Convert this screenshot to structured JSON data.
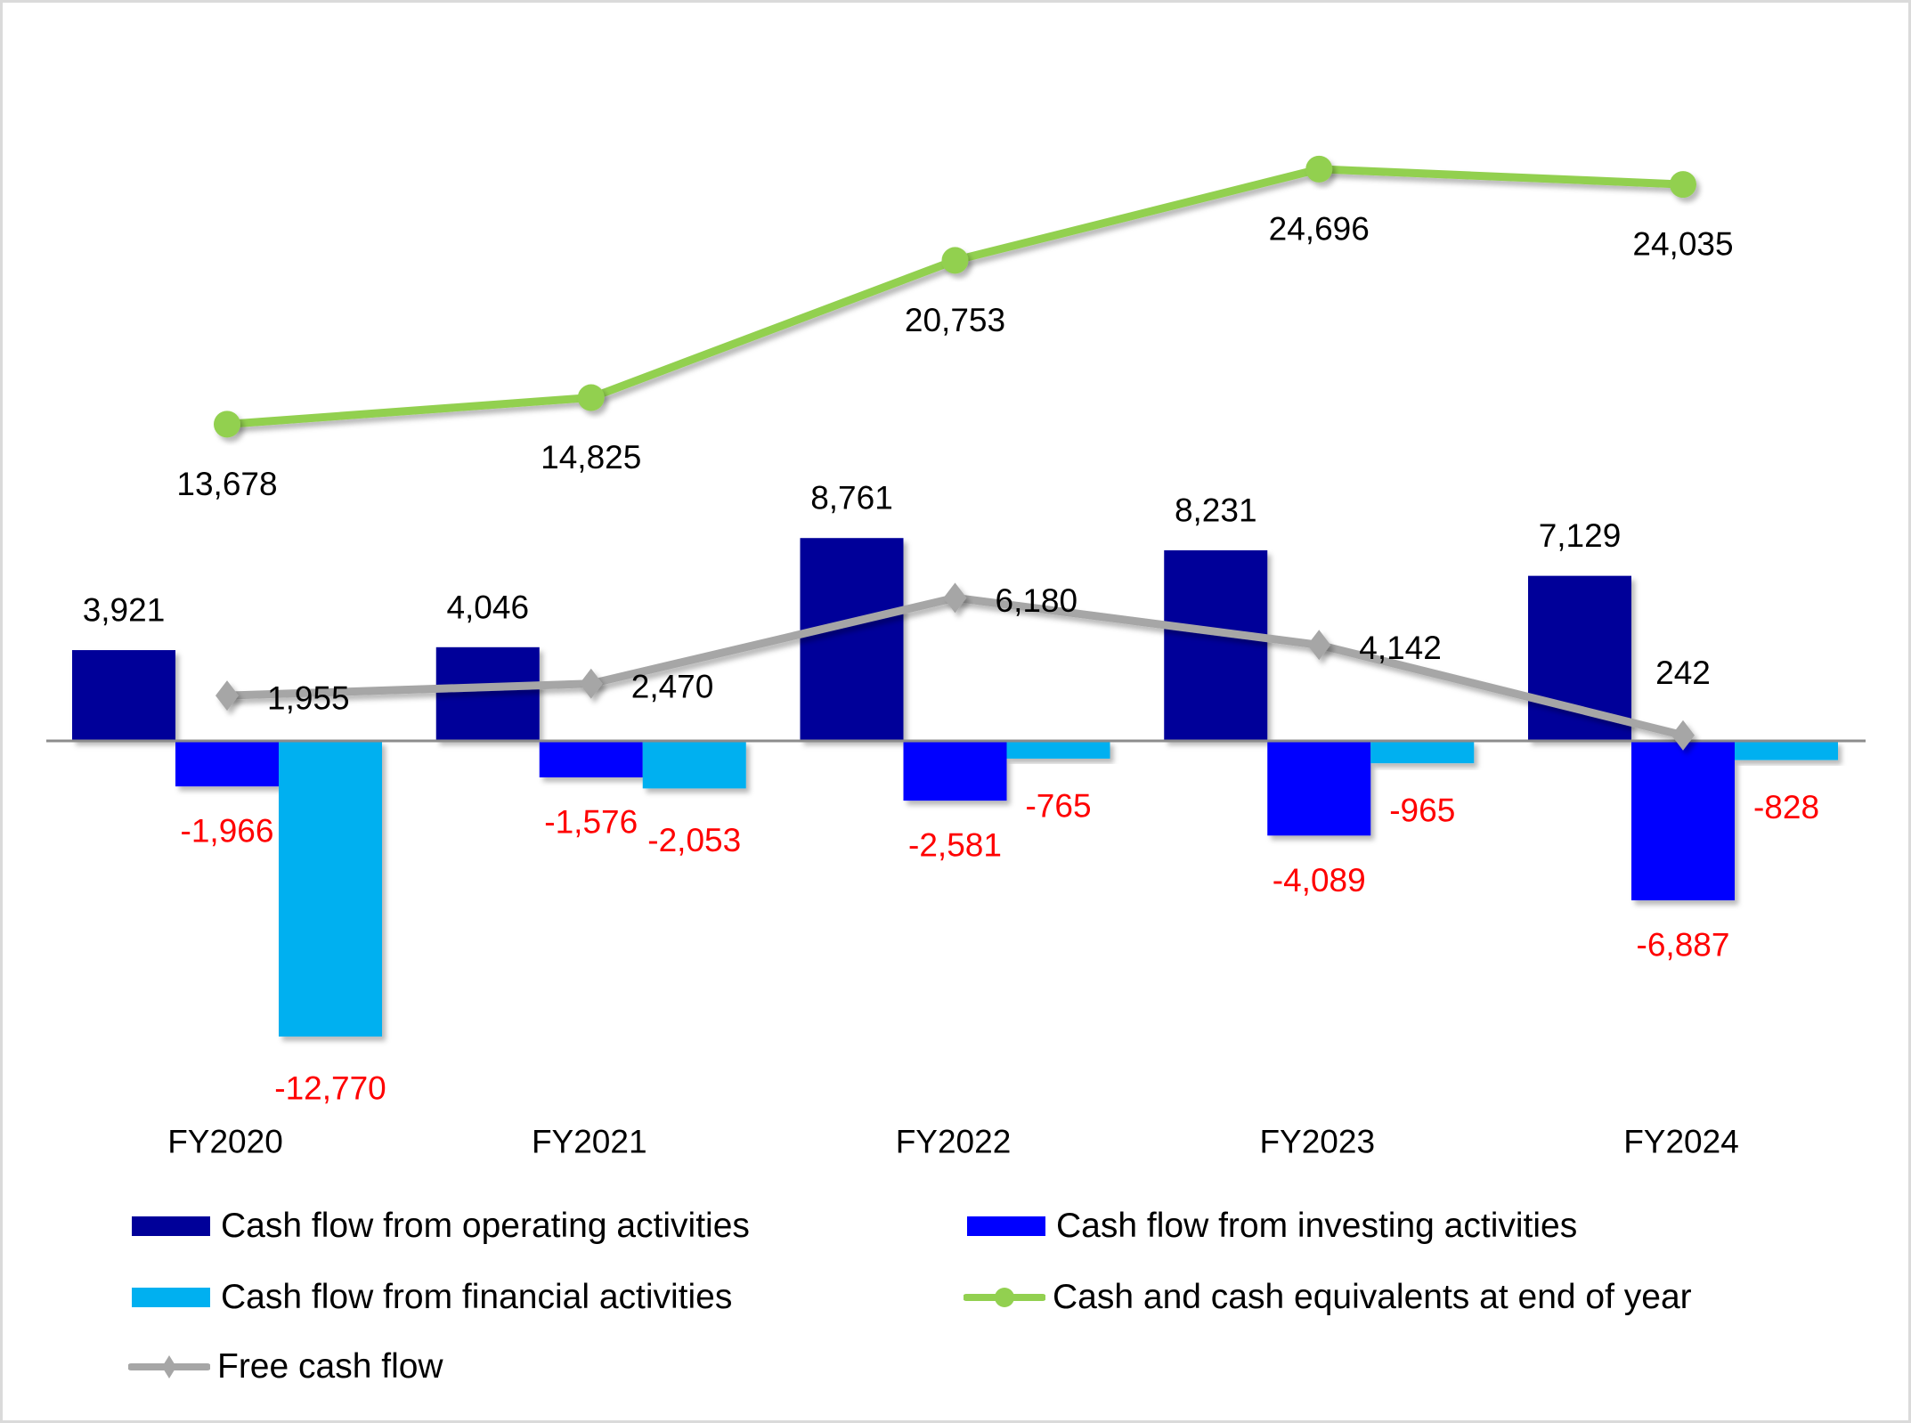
{
  "chart_data": {
    "type": "bar",
    "title": "",
    "xlabel": "",
    "ylabel": "",
    "categories": [
      "FY2020",
      "FY2021",
      "FY2022",
      "FY2023",
      "FY2024"
    ],
    "ylim": [
      -12770,
      24696
    ],
    "grid": false,
    "legend_position": "bottom",
    "series": [
      {
        "name": "Cash flow from operating activities",
        "kind": "bar",
        "color": "#000099",
        "values": [
          3921,
          4046,
          8761,
          8231,
          7129
        ],
        "labels": [
          "3,921",
          "4,046",
          "8,761",
          "8,231",
          "7,129"
        ]
      },
      {
        "name": "Cash flow from investing activities",
        "kind": "bar",
        "color": "#0000ff",
        "values": [
          -1966,
          -1576,
          -2581,
          -4089,
          -6887
        ],
        "labels": [
          "-1,966",
          "-1,576",
          "-2,581",
          "-4,089",
          "-6,887"
        ]
      },
      {
        "name": "Cash flow from financial activities",
        "kind": "bar",
        "color": "#00b0f0",
        "values": [
          -12770,
          -2053,
          -765,
          -965,
          -828
        ],
        "labels": [
          "-12,770",
          "-2,053",
          "-765",
          "-965",
          "-828"
        ]
      },
      {
        "name": "Cash and cash equivalents at end of year",
        "kind": "line",
        "marker": "circle",
        "color": "#92d050",
        "values": [
          13678,
          14825,
          20753,
          24696,
          24035
        ],
        "labels": [
          "13,678",
          "14,825",
          "20,753",
          "24,696",
          "24,035"
        ]
      },
      {
        "name": "Free cash flow",
        "kind": "line",
        "marker": "diamond",
        "color": "#a6a6a6",
        "values": [
          1955,
          2470,
          6180,
          4142,
          242
        ],
        "labels": [
          "1,955",
          "2,470",
          "6,180",
          "4,142",
          "242"
        ]
      }
    ],
    "negative_label_color": "#ff0000",
    "positive_label_color": "#000000",
    "axis_color": "#8c8c8c"
  },
  "legend": {
    "items": [
      {
        "label": "Cash flow from operating activities",
        "type": "bar",
        "color": "#000099"
      },
      {
        "label": "Cash flow from investing activities",
        "type": "bar",
        "color": "#0000ff"
      },
      {
        "label": "Cash flow from financial activities",
        "type": "bar",
        "color": "#00b0f0"
      },
      {
        "label": "Cash and cash equivalents at end of year",
        "type": "line-circle",
        "color": "#92d050"
      },
      {
        "label": "Free cash flow",
        "type": "line-diamond",
        "color": "#a6a6a6"
      }
    ]
  }
}
